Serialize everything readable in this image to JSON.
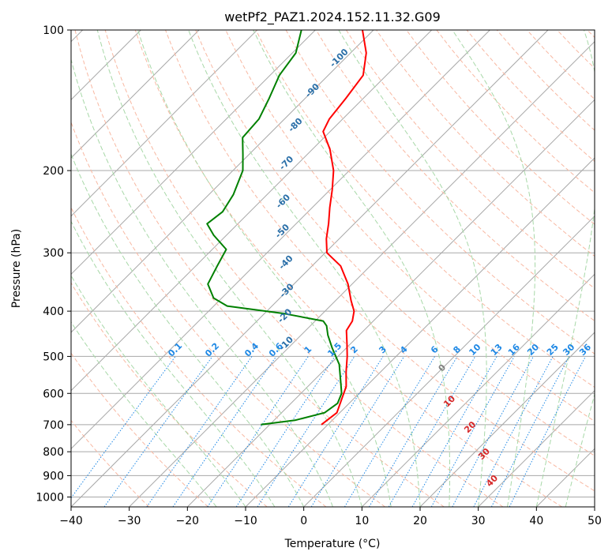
{
  "chart_data": {
    "type": "line",
    "title": "wetPf2_PAZ1.2024.152.11.32.G09",
    "xlabel": "Temperature (°C)",
    "ylabel": "Pressure (hPa)",
    "xlim": [
      -40,
      50
    ],
    "ylim": [
      1050,
      100
    ],
    "y_scale": "log",
    "skew_diagram": true,
    "grid": true,
    "x_ticks": [
      "−40",
      "−30",
      "−20",
      "−10",
      "0",
      "10",
      "20",
      "30",
      "40",
      "50"
    ],
    "x_tick_values": [
      -40,
      -30,
      -20,
      -10,
      0,
      10,
      20,
      30,
      40,
      50
    ],
    "y_ticks": [
      "100",
      "200",
      "300",
      "400",
      "500",
      "600",
      "700",
      "800",
      "900",
      "1000"
    ],
    "y_tick_values": [
      100,
      200,
      300,
      400,
      500,
      600,
      700,
      800,
      900,
      1000
    ],
    "series": [
      {
        "color": "#ff0000",
        "points": [
          {
            "p": 700,
            "t": -11.1
          },
          {
            "p": 660,
            "t": -10.5
          },
          {
            "p": 620,
            "t": -11.9
          },
          {
            "p": 580,
            "t": -13.4
          },
          {
            "p": 540,
            "t": -15.9
          },
          {
            "p": 500,
            "t": -18.4
          },
          {
            "p": 470,
            "t": -20.6
          },
          {
            "p": 440,
            "t": -23.0
          },
          {
            "p": 420,
            "t": -23.6
          },
          {
            "p": 400,
            "t": -25.0
          },
          {
            "p": 380,
            "t": -27.3
          },
          {
            "p": 350,
            "t": -30.7
          },
          {
            "p": 320,
            "t": -35.1
          },
          {
            "p": 300,
            "t": -39.7
          },
          {
            "p": 280,
            "t": -42.2
          },
          {
            "p": 260,
            "t": -44.4
          },
          {
            "p": 240,
            "t": -47.0
          },
          {
            "p": 220,
            "t": -49.6
          },
          {
            "p": 200,
            "t": -52.7
          },
          {
            "p": 180,
            "t": -57.0
          },
          {
            "p": 165,
            "t": -61.2
          },
          {
            "p": 155,
            "t": -62.3
          },
          {
            "p": 140,
            "t": -63.0
          },
          {
            "p": 125,
            "t": -64.0
          },
          {
            "p": 112,
            "t": -67.3
          },
          {
            "p": 100,
            "t": -71.9
          }
        ]
      },
      {
        "color": "#008000",
        "points": [
          {
            "p": 700,
            "t": -21.5
          },
          {
            "p": 685,
            "t": -16.4
          },
          {
            "p": 660,
            "t": -12.6
          },
          {
            "p": 630,
            "t": -12.0
          },
          {
            "p": 600,
            "t": -13.0
          },
          {
            "p": 560,
            "t": -15.6
          },
          {
            "p": 520,
            "t": -18.4
          },
          {
            "p": 480,
            "t": -22.4
          },
          {
            "p": 450,
            "t": -25.4
          },
          {
            "p": 430,
            "t": -27.2
          },
          {
            "p": 420,
            "t": -28.6
          },
          {
            "p": 405,
            "t": -36.5
          },
          {
            "p": 390,
            "t": -47.7
          },
          {
            "p": 375,
            "t": -51.4
          },
          {
            "p": 350,
            "t": -54.8
          },
          {
            "p": 320,
            "t": -56.3
          },
          {
            "p": 295,
            "t": -57.6
          },
          {
            "p": 275,
            "t": -62.2
          },
          {
            "p": 260,
            "t": -65.3
          },
          {
            "p": 245,
            "t": -64.7
          },
          {
            "p": 225,
            "t": -65.8
          },
          {
            "p": 200,
            "t": -68.3
          },
          {
            "p": 185,
            "t": -71.0
          },
          {
            "p": 170,
            "t": -74.0
          },
          {
            "p": 155,
            "t": -74.4
          },
          {
            "p": 140,
            "t": -76.2
          },
          {
            "p": 125,
            "t": -78.4
          },
          {
            "p": 112,
            "t": -79.4
          },
          {
            "p": 100,
            "t": -82.4
          }
        ]
      }
    ],
    "dry_adiabat_labels": [
      "-100",
      "-90",
      "-80",
      "-70",
      "-60",
      "-50",
      "-40",
      "-30",
      "-20",
      "-10"
    ],
    "dry_adiabat_label_positions": [
      {
        "p": 115,
        "t": -71
      },
      {
        "p": 135,
        "t": -70
      },
      {
        "p": 160,
        "t": -67
      },
      {
        "p": 193,
        "t": -62
      },
      {
        "p": 233,
        "t": -56
      },
      {
        "p": 270,
        "t": -51
      },
      {
        "p": 315,
        "t": -45
      },
      {
        "p": 362,
        "t": -40
      },
      {
        "p": 410,
        "t": -36
      },
      {
        "p": 470,
        "t": -31
      }
    ],
    "moist_adiabat_labels": [
      "0",
      "10",
      "20",
      "30",
      "40"
    ],
    "moist_adiabat_label_positions": [
      {
        "p": 530,
        "t": 0
      },
      {
        "p": 625,
        "t": 7
      },
      {
        "p": 710,
        "t": 15
      },
      {
        "p": 810,
        "t": 22
      },
      {
        "p": 925,
        "t": 28
      }
    ],
    "mixing_ratio_labels": [
      "0.1",
      "0.2",
      "0.4",
      "0.6",
      "1",
      "1.5",
      "2",
      "3",
      "4",
      "6",
      "8",
      "10",
      "13",
      "16",
      "20",
      "25",
      "30",
      "36"
    ],
    "mixing_ratio_values": [
      0.1,
      0.2,
      0.4,
      0.6,
      1,
      1.5,
      2,
      3,
      4,
      6,
      8,
      10,
      13,
      16,
      20,
      25,
      30,
      36
    ],
    "mixing_ratio_label_pressure": 500,
    "colors": {
      "temperature": "#ff0000",
      "dewpoint": "#008000",
      "isotherm": "#a8a8a8",
      "isobar": "#a8a8a8",
      "dry_adiabat": "#f8b8a2",
      "moist_adiabat": "#a8d8a8",
      "mixing_ratio": "#1e88e5",
      "dry_label": "#2a6fa8",
      "moist_label": "#d62728",
      "mixing_label": "#1e88e5"
    }
  }
}
